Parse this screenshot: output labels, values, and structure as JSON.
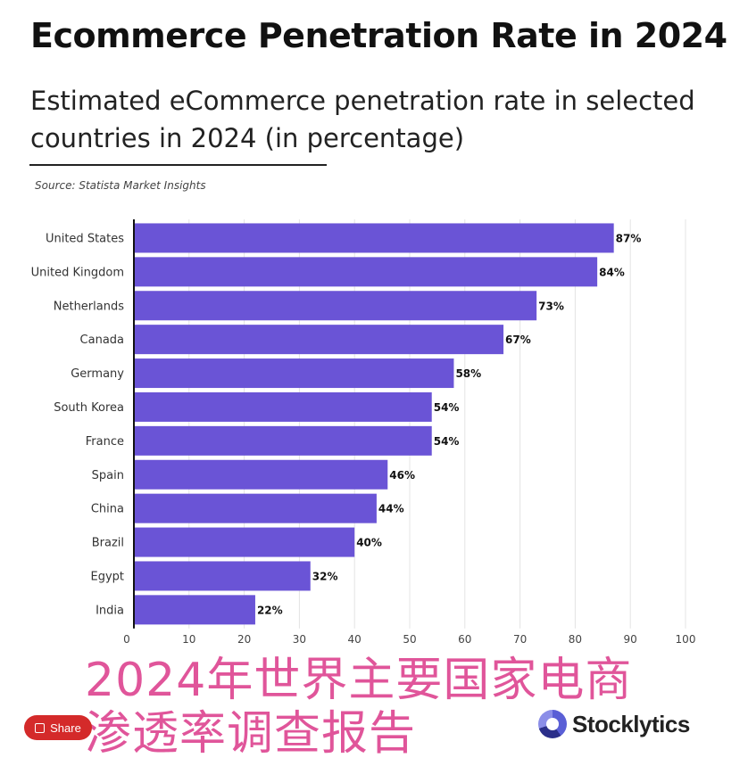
{
  "title": "Ecommerce Penetration Rate in 2024",
  "subtitle": "Estimated eCommerce penetration rate in selected countries in 2024 (in percentage)",
  "source": "Source: Statista Market Insights",
  "overlay": {
    "line1": "2024年世界主要国家电商",
    "line2": "渗透率调查报告"
  },
  "share_label": "Share",
  "brand": "Stocklytics",
  "colors": {
    "bar": "#6a54d6",
    "grid": "#e4e4e4",
    "overlay_text": "#e0559a",
    "share_bg": "#d42a2a"
  },
  "chart_data": {
    "type": "bar",
    "orientation": "horizontal",
    "categories": [
      "United States",
      "United Kingdom",
      "Netherlands",
      "Canada",
      "Germany",
      "South Korea",
      "France",
      "Spain",
      "China",
      "Brazil",
      "Egypt",
      "India"
    ],
    "values": [
      87,
      84,
      73,
      67,
      58,
      54,
      54,
      46,
      44,
      40,
      32,
      22
    ],
    "data_labels": [
      "87%",
      "84%",
      "73%",
      "67%",
      "58%",
      "54%",
      "54%",
      "46%",
      "44%",
      "40%",
      "32%",
      "22%"
    ],
    "xlim": [
      0,
      100
    ],
    "xticks": [
      0,
      10,
      20,
      30,
      40,
      50,
      60,
      70,
      80,
      90,
      100
    ],
    "grid": true,
    "legend": "none"
  }
}
